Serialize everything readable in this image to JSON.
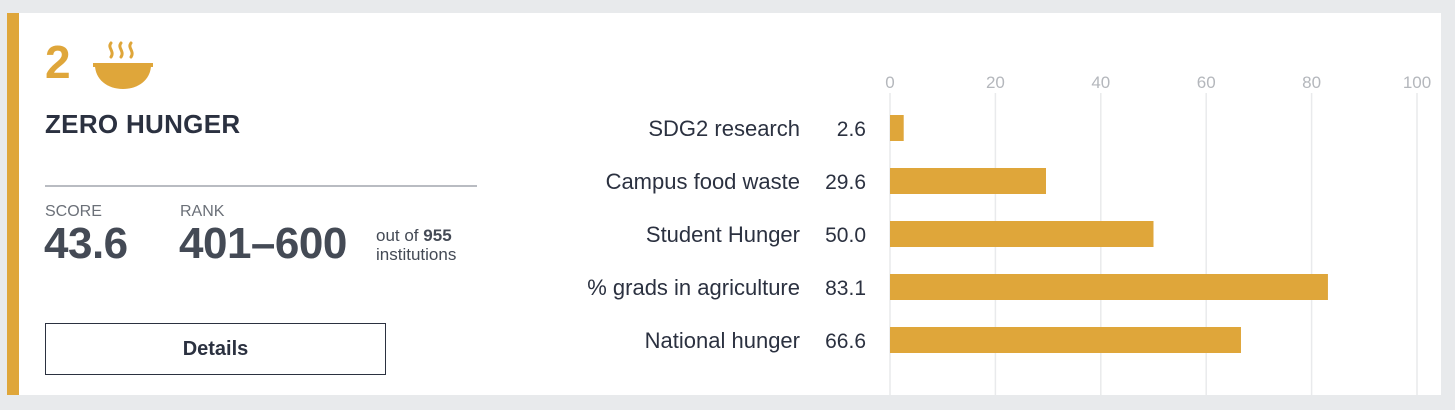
{
  "goal": {
    "number": "2",
    "icon": "soup-bowl-icon",
    "title": "ZERO HUNGER",
    "accent_color": "#dfa63a"
  },
  "stats": {
    "score_label": "SCORE",
    "score_value": "43.6",
    "rank_label": "RANK",
    "rank_value": "401–600",
    "out_of_prefix": "out of",
    "out_of_count": "955",
    "out_of_suffix": "institutions"
  },
  "details_button": "Details",
  "chart_data": {
    "type": "bar",
    "orientation": "horizontal",
    "categories": [
      "SDG2 research",
      "Campus food waste",
      "Student Hunger",
      "% grads in agriculture",
      "National hunger"
    ],
    "values": [
      2.6,
      29.6,
      50.0,
      83.1,
      66.6
    ],
    "value_labels": [
      "2.6",
      "29.6",
      "50.0",
      "83.1",
      "66.6"
    ],
    "xlim": [
      0,
      100
    ],
    "xticks": [
      0,
      20,
      40,
      60,
      80,
      100
    ],
    "grid": true,
    "bar_color": "#dfa63a",
    "title": "",
    "xlabel": "",
    "ylabel": ""
  }
}
